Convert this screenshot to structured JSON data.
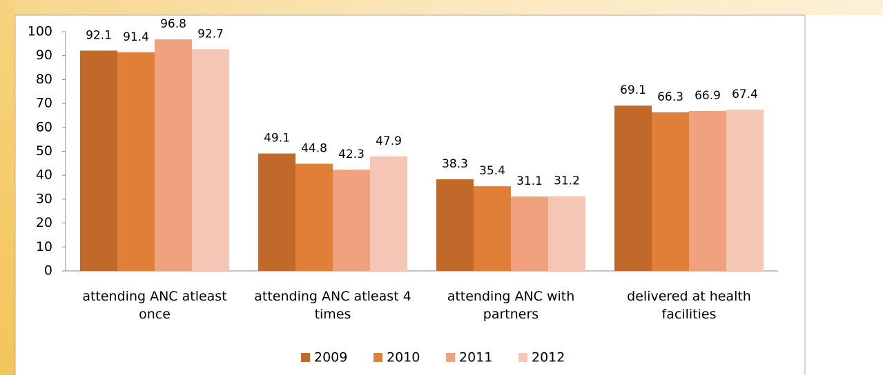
{
  "chart_data": {
    "type": "bar",
    "categories": [
      "attending ANC atleast once",
      "attending ANC atleast 4 times",
      "attending ANC with partners",
      "delivered at health facilities"
    ],
    "series": [
      {
        "name": "2009",
        "color": "#c0692b",
        "values": [
          92.1,
          49.1,
          38.3,
          69.1
        ]
      },
      {
        "name": "2010",
        "color": "#e07f38",
        "values": [
          91.4,
          44.8,
          35.4,
          66.3
        ]
      },
      {
        "name": "2011",
        "color": "#f0a27e",
        "values": [
          96.8,
          42.3,
          31.1,
          66.9
        ]
      },
      {
        "name": "2012",
        "color": "#f5c6b4",
        "values": [
          92.7,
          47.9,
          31.2,
          67.4
        ]
      }
    ],
    "ylim": [
      0,
      100
    ],
    "yticks": [
      0,
      10,
      20,
      30,
      40,
      50,
      60,
      70,
      80,
      90,
      100
    ],
    "grid": false,
    "legend": "bottom"
  }
}
